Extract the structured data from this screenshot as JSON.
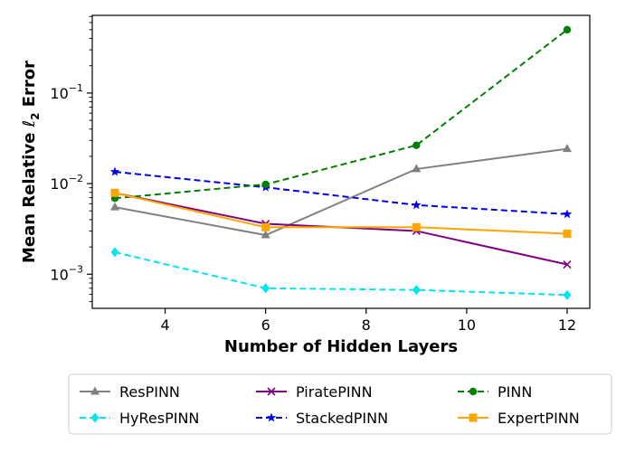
{
  "chart_data": {
    "type": "line",
    "title": "",
    "xlabel": "Number of Hidden Layers",
    "ylabel_main": "Mean Relative ",
    "ylabel_symbol": "ℓ",
    "ylabel_sub": "2",
    "ylabel_tail": " Error",
    "x": [
      3,
      6,
      9,
      12
    ],
    "xlim": [
      2.55,
      12.45
    ],
    "ylim": [
      0.00042,
      0.72
    ],
    "yscale": "log",
    "xticks": [
      4,
      6,
      8,
      10,
      12
    ],
    "yticks": [
      {
        "base": "10",
        "exp": "−3",
        "value": 0.001
      },
      {
        "base": "10",
        "exp": "−2",
        "value": 0.01
      },
      {
        "base": "10",
        "exp": "−1",
        "value": 0.1
      }
    ],
    "grid": false,
    "legend_position": "bottom (outside, 3 columns)",
    "series": [
      {
        "name": "ResPINN",
        "values": [
          0.0055,
          0.0027,
          0.0145,
          0.0242
        ],
        "color": "#808080",
        "dash": "solid",
        "marker": "triangle"
      },
      {
        "name": "HyResPINN",
        "values": [
          0.00175,
          0.0007,
          0.00067,
          0.00059
        ],
        "color": "#00e5ee",
        "dash": "dashed",
        "marker": "diamond"
      },
      {
        "name": "PiratePINN",
        "values": [
          0.0079,
          0.0036,
          0.003,
          0.00128
        ],
        "color": "#800080",
        "dash": "solid",
        "marker": "x"
      },
      {
        "name": "StackedPINN",
        "values": [
          0.0135,
          0.0091,
          0.0058,
          0.0046
        ],
        "color": "#0000ee",
        "dash": "dashed",
        "marker": "star"
      },
      {
        "name": "PINN",
        "values": [
          0.0069,
          0.0098,
          0.0265,
          0.5
        ],
        "color": "#008000",
        "dash": "dashed",
        "marker": "circle"
      },
      {
        "name": "ExpertPINN",
        "values": [
          0.0079,
          0.0033,
          0.0033,
          0.0028
        ],
        "color": "#ffa500",
        "dash": "solid",
        "marker": "square"
      }
    ]
  }
}
